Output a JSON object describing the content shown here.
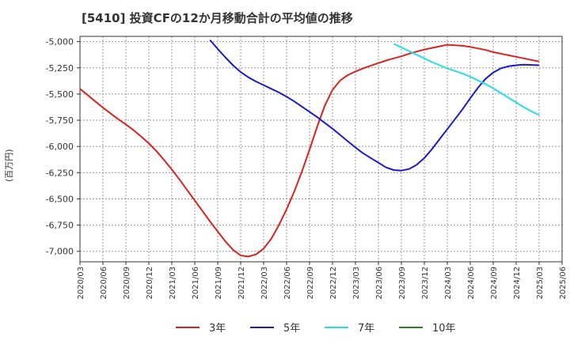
{
  "chart_data": {
    "type": "line",
    "title": "[5410]  投資CFの12か月移動合計の平均値の推移",
    "ylabel": "(百万円)",
    "xlabel": "",
    "ylim": [
      -7100,
      -4950
    ],
    "yticks": [
      -5000,
      -5250,
      -5500,
      -5750,
      -6000,
      -6250,
      -6500,
      -6750,
      -7000
    ],
    "ytick_labels": [
      "-5,000",
      "-5,250",
      "-5,500",
      "-5,750",
      "-6,000",
      "-6,250",
      "-6,500",
      "-6,750",
      "-7,000"
    ],
    "x_labels": [
      "2020/03",
      "2020/06",
      "2020/09",
      "2020/12",
      "2021/03",
      "2021/06",
      "2021/09",
      "2021/12",
      "2022/03",
      "2022/06",
      "2022/09",
      "2022/12",
      "2023/03",
      "2023/06",
      "2023/09",
      "2023/12",
      "2024/03",
      "2024/06",
      "2024/09",
      "2024/12",
      "2025/03",
      "2025/06"
    ],
    "grid": true,
    "legend_position": "bottom",
    "series": [
      {
        "name": "3年",
        "color": "#dd2222",
        "points": [
          [
            "2020/03",
            -5450
          ],
          [
            "2020/04",
            -5510
          ],
          [
            "2020/05",
            -5570
          ],
          [
            "2020/06",
            -5630
          ],
          [
            "2020/07",
            -5685
          ],
          [
            "2020/08",
            -5740
          ],
          [
            "2020/09",
            -5790
          ],
          [
            "2020/10",
            -5845
          ],
          [
            "2020/11",
            -5905
          ],
          [
            "2020/12",
            -5970
          ],
          [
            "2021/01",
            -6045
          ],
          [
            "2021/02",
            -6130
          ],
          [
            "2021/03",
            -6220
          ],
          [
            "2021/04",
            -6315
          ],
          [
            "2021/05",
            -6415
          ],
          [
            "2021/06",
            -6515
          ],
          [
            "2021/07",
            -6615
          ],
          [
            "2021/08",
            -6715
          ],
          [
            "2021/09",
            -6810
          ],
          [
            "2021/10",
            -6905
          ],
          [
            "2021/11",
            -6985
          ],
          [
            "2021/12",
            -7040
          ],
          [
            "2022/01",
            -7050
          ],
          [
            "2022/02",
            -7030
          ],
          [
            "2022/03",
            -6975
          ],
          [
            "2022/04",
            -6880
          ],
          [
            "2022/05",
            -6750
          ],
          [
            "2022/06",
            -6600
          ],
          [
            "2022/07",
            -6430
          ],
          [
            "2022/08",
            -6240
          ],
          [
            "2022/09",
            -6030
          ],
          [
            "2022/10",
            -5810
          ],
          [
            "2022/11",
            -5610
          ],
          [
            "2022/12",
            -5460
          ],
          [
            "2023/01",
            -5370
          ],
          [
            "2023/02",
            -5320
          ],
          [
            "2023/03",
            -5285
          ],
          [
            "2023/04",
            -5255
          ],
          [
            "2023/05",
            -5230
          ],
          [
            "2023/06",
            -5205
          ],
          [
            "2023/07",
            -5180
          ],
          [
            "2023/08",
            -5160
          ],
          [
            "2023/09",
            -5140
          ],
          [
            "2023/10",
            -5115
          ],
          [
            "2023/11",
            -5095
          ],
          [
            "2023/12",
            -5075
          ],
          [
            "2024/01",
            -5060
          ],
          [
            "2024/02",
            -5045
          ],
          [
            "2024/03",
            -5030
          ],
          [
            "2024/04",
            -5035
          ],
          [
            "2024/05",
            -5040
          ],
          [
            "2024/06",
            -5050
          ],
          [
            "2024/07",
            -5065
          ],
          [
            "2024/08",
            -5080
          ],
          [
            "2024/09",
            -5100
          ],
          [
            "2024/10",
            -5115
          ],
          [
            "2024/11",
            -5130
          ],
          [
            "2024/12",
            -5145
          ],
          [
            "2025/01",
            -5160
          ],
          [
            "2025/02",
            -5175
          ],
          [
            "2025/03",
            -5190
          ]
        ]
      },
      {
        "name": "5年",
        "color": "#1a1acc",
        "points": [
          [
            "2021/08",
            -4985
          ],
          [
            "2021/09",
            -5070
          ],
          [
            "2021/10",
            -5150
          ],
          [
            "2021/11",
            -5225
          ],
          [
            "2021/12",
            -5290
          ],
          [
            "2022/01",
            -5340
          ],
          [
            "2022/02",
            -5380
          ],
          [
            "2022/03",
            -5415
          ],
          [
            "2022/04",
            -5450
          ],
          [
            "2022/05",
            -5485
          ],
          [
            "2022/06",
            -5525
          ],
          [
            "2022/07",
            -5570
          ],
          [
            "2022/08",
            -5620
          ],
          [
            "2022/09",
            -5670
          ],
          [
            "2022/10",
            -5720
          ],
          [
            "2022/11",
            -5775
          ],
          [
            "2022/12",
            -5830
          ],
          [
            "2023/01",
            -5890
          ],
          [
            "2023/02",
            -5950
          ],
          [
            "2023/03",
            -6010
          ],
          [
            "2023/04",
            -6065
          ],
          [
            "2023/05",
            -6110
          ],
          [
            "2023/06",
            -6155
          ],
          [
            "2023/07",
            -6200
          ],
          [
            "2023/08",
            -6225
          ],
          [
            "2023/09",
            -6230
          ],
          [
            "2023/10",
            -6215
          ],
          [
            "2023/11",
            -6175
          ],
          [
            "2023/12",
            -6110
          ],
          [
            "2024/01",
            -6025
          ],
          [
            "2024/02",
            -5930
          ],
          [
            "2024/03",
            -5835
          ],
          [
            "2024/04",
            -5740
          ],
          [
            "2024/05",
            -5645
          ],
          [
            "2024/06",
            -5540
          ],
          [
            "2024/07",
            -5440
          ],
          [
            "2024/08",
            -5355
          ],
          [
            "2024/09",
            -5295
          ],
          [
            "2024/10",
            -5255
          ],
          [
            "2024/11",
            -5235
          ],
          [
            "2024/12",
            -5225
          ],
          [
            "2025/01",
            -5220
          ],
          [
            "2025/02",
            -5222
          ],
          [
            "2025/03",
            -5225
          ]
        ]
      },
      {
        "name": "7年",
        "color": "#22e0e8",
        "points": [
          [
            "2023/08",
            -5020
          ],
          [
            "2023/09",
            -5055
          ],
          [
            "2023/10",
            -5090
          ],
          [
            "2023/11",
            -5125
          ],
          [
            "2023/12",
            -5160
          ],
          [
            "2024/01",
            -5195
          ],
          [
            "2024/02",
            -5225
          ],
          [
            "2024/03",
            -5255
          ],
          [
            "2024/04",
            -5280
          ],
          [
            "2024/05",
            -5305
          ],
          [
            "2024/06",
            -5335
          ],
          [
            "2024/07",
            -5370
          ],
          [
            "2024/08",
            -5405
          ],
          [
            "2024/09",
            -5445
          ],
          [
            "2024/10",
            -5490
          ],
          [
            "2024/11",
            -5535
          ],
          [
            "2024/12",
            -5580
          ],
          [
            "2025/01",
            -5625
          ],
          [
            "2025/02",
            -5665
          ],
          [
            "2025/03",
            -5700
          ]
        ]
      },
      {
        "name": "10年",
        "color": "#228822",
        "points": []
      }
    ]
  }
}
